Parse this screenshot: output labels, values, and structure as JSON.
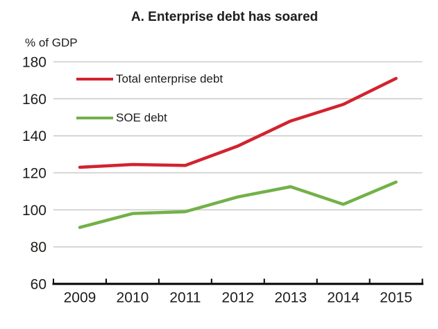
{
  "title": "A. Enterprise debt has soared",
  "unit_label": "% of GDP",
  "colors": {
    "grid": "#cccccc",
    "axis": "#000000",
    "text": "#1d1d1b"
  },
  "chart_data": {
    "type": "line",
    "title": "A. Enterprise debt has soared",
    "ylabel": "% of GDP",
    "categories": [
      "2009",
      "2010",
      "2011",
      "2012",
      "2013",
      "2014",
      "2015"
    ],
    "series": [
      {
        "name": "Total enterprise debt",
        "color": "#d2232e",
        "values": [
          123,
          124.5,
          124,
          134.5,
          148,
          157,
          171
        ]
      },
      {
        "name": "SOE debt",
        "color": "#72b148",
        "values": [
          90.5,
          98,
          99,
          107,
          112.5,
          103,
          115
        ]
      }
    ],
    "ylim": [
      60,
      180
    ],
    "ytick_step": 20,
    "grid": "horizontal",
    "legend_position": "top-left-inside"
  }
}
